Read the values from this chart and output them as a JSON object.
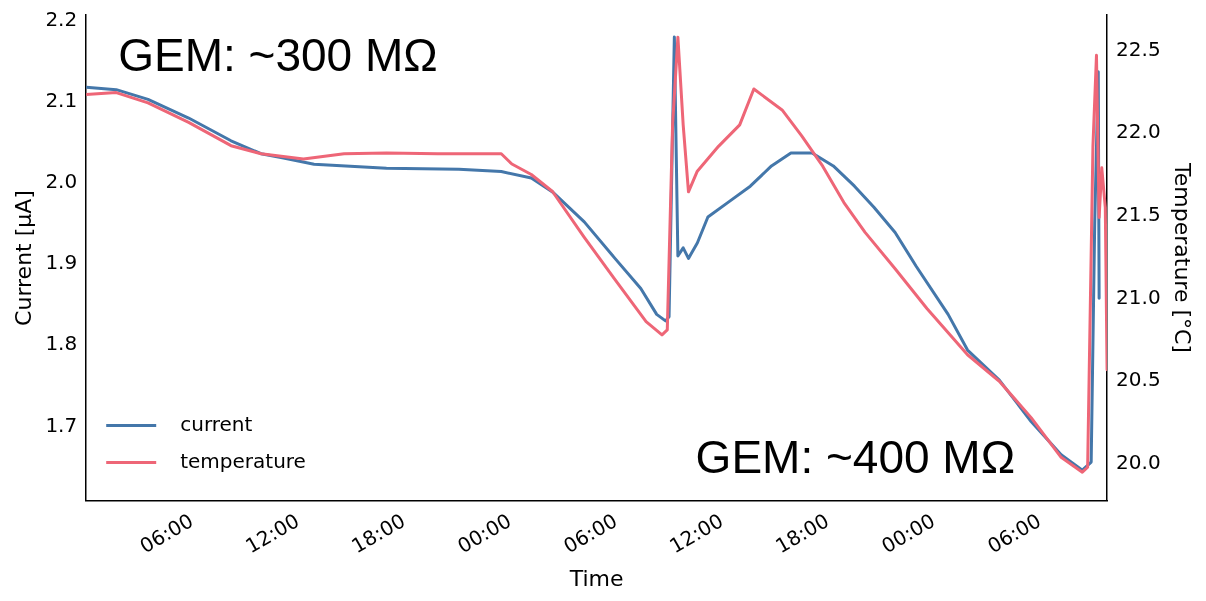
{
  "chart_data": {
    "type": "line",
    "xlabel": "Time",
    "ylabel": "Current [µA]",
    "y2label": "Temperature [°C]",
    "annotations": [
      "GEM: ~300 MΩ",
      "GEM: ~400 MΩ"
    ],
    "xlim": [
      "--01-01T00:00",
      "--01-03T09:48"
    ],
    "xticks": [
      {
        "value": "--01-01T06:00",
        "label": "06:00"
      },
      {
        "value": "--01-01T12:00",
        "label": "12:00"
      },
      {
        "value": "--01-01T18:00",
        "label": "18:00"
      },
      {
        "value": "--01-02T00:00",
        "label": "00:00"
      },
      {
        "value": "--01-02T06:00",
        "label": "06:00"
      },
      {
        "value": "--01-02T12:00",
        "label": "12:00"
      },
      {
        "value": "--01-02T18:00",
        "label": "18:00"
      },
      {
        "value": "--01-03T00:00",
        "label": "00:00"
      },
      {
        "value": "--01-03T06:00",
        "label": "06:00"
      }
    ],
    "ylim": [
      1.608,
      2.207
    ],
    "yticks": [
      1.7,
      1.8,
      1.9,
      {
        "value": 2,
        "label": "2.0"
      },
      2.1,
      2.2
    ],
    "y2lim": [
      19.776,
      22.714
    ],
    "y2ticks": [
      {
        "value": 20,
        "label": "20.0"
      },
      20.5,
      {
        "value": 21,
        "label": "21.0"
      },
      21.5,
      {
        "value": 22,
        "label": "22.0"
      },
      22.5
    ],
    "grid": false,
    "legend": "bottom left",
    "marker": "none",
    "line_style": "solid",
    "series": [
      {
        "name": "current",
        "color": "#4477aa",
        "x": [
          "--01-01T00:00",
          "--01-01T01:42",
          "--01-01T03:30",
          "--01-01T05:48",
          "--01-01T08:12",
          "--01-01T09:54",
          "--01-01T11:06",
          "--01-01T12:54",
          "--01-01T17:00",
          "--01-01T21:06",
          "--01-01T23:30",
          "--01-02T01:12",
          "--01-02T02:24",
          "--01-02T04:12",
          "--01-02T05:54",
          "--01-02T07:24",
          "--01-02T08:18",
          "--01-02T08:48",
          "--01-02T09:00",
          "--01-02T09:18",
          "--01-02T09:30",
          "--01-02T09:48",
          "--01-02T10:06",
          "--01-02T10:36",
          "--01-02T11:12",
          "--01-02T12:24",
          "--01-02T13:36",
          "--01-02T14:48",
          "--01-02T15:54",
          "--01-02T17:06",
          "--01-02T18:18",
          "--01-02T19:30",
          "--01-02T20:36",
          "--01-02T21:48",
          "--01-02T23:00",
          "--01-03T00:48",
          "--01-03T01:54",
          "--01-03T03:42",
          "--01-03T05:30",
          "--01-03T07:12",
          "--01-03T08:24",
          "--01-03T08:54",
          "--01-03T09:06",
          "--01-03T09:18",
          "--01-03T09:21"
        ],
        "values": [
          2.118,
          2.115,
          2.103,
          2.08,
          2.052,
          2.036,
          2.031,
          2.023,
          2.018,
          2.017,
          2.014,
          2.006,
          1.989,
          1.952,
          1.908,
          1.87,
          1.838,
          1.83,
          1.835,
          2.18,
          1.91,
          1.92,
          1.907,
          1.926,
          1.958,
          1.977,
          1.996,
          2.021,
          2.037,
          2.037,
          2.021,
          1.996,
          1.97,
          1.939,
          1.897,
          1.838,
          1.794,
          1.757,
          1.706,
          1.665,
          1.646,
          1.656,
          1.95,
          2.137,
          1.858
        ]
      },
      {
        "name": "temperature",
        "color": "#ee6677",
        "axis": "y2",
        "x": [
          "--01-01T00:00",
          "--01-01T01:42",
          "--01-01T03:30",
          "--01-01T05:48",
          "--01-01T08:12",
          "--01-01T09:54",
          "--01-01T12:18",
          "--01-01T14:36",
          "--01-01T17:00",
          "--01-01T19:54",
          "--01-01T23:30",
          "--01-02T00:06",
          "--01-02T01:12",
          "--01-02T02:24",
          "--01-02T04:12",
          "--01-02T05:54",
          "--01-02T07:42",
          "--01-02T08:36",
          "--01-02T08:54",
          "--01-02T09:12",
          "--01-02T09:30",
          "--01-02T09:48",
          "--01-02T10:06",
          "--01-02T10:36",
          "--01-02T11:48",
          "--01-02T13:00",
          "--01-02T13:48",
          "--01-02T15:24",
          "--01-02T16:30",
          "--01-02T17:42",
          "--01-02T18:54",
          "--01-02T20:06",
          "--01-02T21:48",
          "--01-02T23:36",
          "--01-03T01:54",
          "--01-03T03:42",
          "--01-03T05:30",
          "--01-03T07:12",
          "--01-03T08:24",
          "--01-03T08:42",
          "--01-03T09:00",
          "--01-03T09:12",
          "--01-03T09:21",
          "--01-03T09:30",
          "--01-03T09:42",
          "--01-03T09:48"
        ],
        "values": [
          22.233,
          22.245,
          22.183,
          22.065,
          21.924,
          21.875,
          21.844,
          21.875,
          21.88,
          21.875,
          21.875,
          21.813,
          21.75,
          21.647,
          21.37,
          21.12,
          20.86,
          20.78,
          20.81,
          22.05,
          22.58,
          22.05,
          21.645,
          21.77,
          21.92,
          22.05,
          22.267,
          22.14,
          21.985,
          21.8,
          21.58,
          21.4,
          21.18,
          20.94,
          20.66,
          20.5,
          20.28,
          20.04,
          19.95,
          19.98,
          21.92,
          22.47,
          21.49,
          21.79,
          21.55,
          20.57
        ]
      }
    ]
  }
}
